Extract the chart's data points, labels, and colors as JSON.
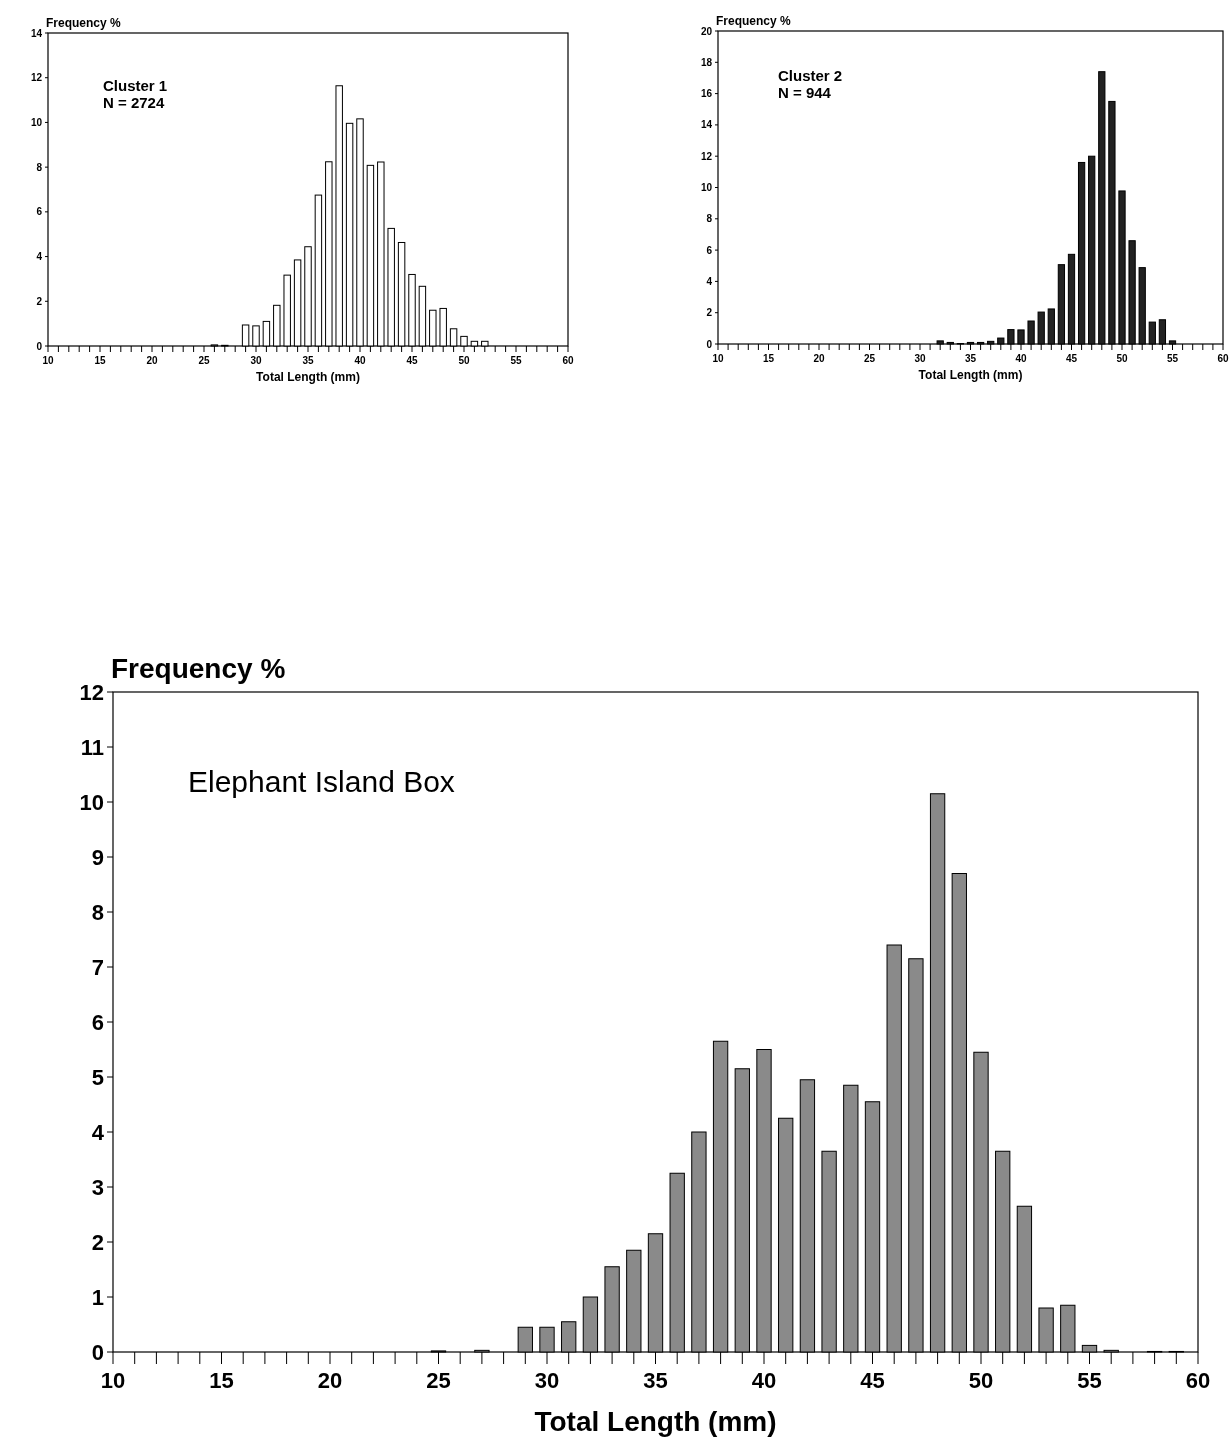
{
  "chart_data": [
    {
      "type": "bar",
      "ylabel": "Frequency %",
      "xlabel": "Total Length (mm)",
      "annotations": [
        "Cluster 1",
        "N = 2724"
      ],
      "x": [
        26,
        27,
        28,
        29,
        30,
        31,
        32,
        33,
        34,
        35,
        36,
        37,
        38,
        39,
        40,
        41,
        42,
        43,
        44,
        45,
        46,
        47,
        48,
        49,
        50,
        51,
        52
      ],
      "values": [
        0.05,
        0.03,
        0,
        0.94,
        0.9,
        1.1,
        1.82,
        3.17,
        3.85,
        4.44,
        6.75,
        8.24,
        11.64,
        9.96,
        10.16,
        8.08,
        8.23,
        5.26,
        4.63,
        3.2,
        2.67,
        1.6,
        1.68,
        0.77,
        0.43,
        0.21,
        0.21
      ],
      "color": "#ffffff",
      "xlim": [
        10,
        60
      ],
      "ylim": [
        0,
        14
      ],
      "yticks": [
        0,
        2,
        4,
        6,
        8,
        10,
        12,
        14
      ],
      "xticks": [
        10,
        {
          "value": 11,
          "label": null
        },
        {
          "value": 12,
          "label": null
        },
        {
          "value": 13,
          "label": null
        },
        {
          "value": 14,
          "label": null
        },
        15,
        {
          "value": 16,
          "label": null
        },
        {
          "value": 17,
          "label": null
        },
        {
          "value": 18,
          "label": null
        },
        {
          "value": 19,
          "label": null
        },
        20,
        {
          "value": 21,
          "label": null
        },
        {
          "value": 22,
          "label": null
        },
        {
          "value": 23,
          "label": null
        },
        {
          "value": 24,
          "label": null
        },
        25,
        {
          "value": 26,
          "label": null
        },
        {
          "value": 27,
          "label": null
        },
        {
          "value": 28,
          "label": null
        },
        {
          "value": 29,
          "label": null
        },
        30,
        {
          "value": 31,
          "label": null
        },
        {
          "value": 32,
          "label": null
        },
        {
          "value": 33,
          "label": null
        },
        {
          "value": 34,
          "label": null
        },
        35,
        {
          "value": 36,
          "label": null
        },
        {
          "value": 37,
          "label": null
        },
        {
          "value": 38,
          "label": null
        },
        {
          "value": 39,
          "label": null
        },
        40,
        {
          "value": 41,
          "label": null
        },
        {
          "value": 42,
          "label": null
        },
        {
          "value": 43,
          "label": null
        },
        {
          "value": 44,
          "label": null
        },
        45,
        {
          "value": 46,
          "label": null
        },
        {
          "value": 47,
          "label": null
        },
        {
          "value": 48,
          "label": null
        },
        {
          "value": 49,
          "label": null
        },
        50,
        {
          "value": 51,
          "label": null
        },
        {
          "value": 52,
          "label": null
        },
        {
          "value": 53,
          "label": null
        },
        {
          "value": 54,
          "label": null
        },
        55,
        {
          "value": 56,
          "label": null
        },
        {
          "value": 57,
          "label": null
        },
        {
          "value": 58,
          "label": null
        },
        {
          "value": 59,
          "label": null
        },
        60
      ]
    },
    {
      "type": "bar",
      "ylabel": "Frequency %",
      "xlabel": "Total Length (mm)",
      "annotations": [
        "Cluster 2",
        "N = 944"
      ],
      "x": [
        32,
        33,
        34,
        35,
        36,
        37,
        38,
        39,
        40,
        41,
        42,
        43,
        44,
        45,
        46,
        47,
        48,
        49,
        50,
        51,
        52,
        53,
        54,
        55
      ],
      "values": [
        0.2,
        0.1,
        0.03,
        0.1,
        0.1,
        0.17,
        0.38,
        0.92,
        0.9,
        1.47,
        2.04,
        2.24,
        5.07,
        5.73,
        11.6,
        12.0,
        17.4,
        15.5,
        9.78,
        6.6,
        4.88,
        1.4,
        1.55,
        0.2
      ],
      "color": "#222222",
      "xlim": [
        10,
        60
      ],
      "ylim": [
        0,
        20
      ],
      "yticks": [
        0,
        2,
        4,
        6,
        8,
        10,
        12,
        14,
        16,
        18,
        20
      ],
      "xticks": [
        10,
        {
          "value": 11,
          "label": null
        },
        {
          "value": 12,
          "label": null
        },
        {
          "value": 13,
          "label": null
        },
        {
          "value": 14,
          "label": null
        },
        15,
        {
          "value": 16,
          "label": null
        },
        {
          "value": 17,
          "label": null
        },
        {
          "value": 18,
          "label": null
        },
        {
          "value": 19,
          "label": null
        },
        20,
        {
          "value": 21,
          "label": null
        },
        {
          "value": 22,
          "label": null
        },
        {
          "value": 23,
          "label": null
        },
        {
          "value": 24,
          "label": null
        },
        25,
        {
          "value": 26,
          "label": null
        },
        {
          "value": 27,
          "label": null
        },
        {
          "value": 28,
          "label": null
        },
        {
          "value": 29,
          "label": null
        },
        30,
        {
          "value": 31,
          "label": null
        },
        {
          "value": 32,
          "label": null
        },
        {
          "value": 33,
          "label": null
        },
        {
          "value": 34,
          "label": null
        },
        35,
        {
          "value": 36,
          "label": null
        },
        {
          "value": 37,
          "label": null
        },
        {
          "value": 38,
          "label": null
        },
        {
          "value": 39,
          "label": null
        },
        40,
        {
          "value": 41,
          "label": null
        },
        {
          "value": 42,
          "label": null
        },
        {
          "value": 43,
          "label": null
        },
        {
          "value": 44,
          "label": null
        },
        45,
        {
          "value": 46,
          "label": null
        },
        {
          "value": 47,
          "label": null
        },
        {
          "value": 48,
          "label": null
        },
        {
          "value": 49,
          "label": null
        },
        50,
        {
          "value": 51,
          "label": null
        },
        {
          "value": 52,
          "label": null
        },
        {
          "value": 53,
          "label": null
        },
        {
          "value": 54,
          "label": null
        },
        55,
        {
          "value": 56,
          "label": null
        },
        {
          "value": 57,
          "label": null
        },
        {
          "value": 58,
          "label": null
        },
        {
          "value": 59,
          "label": null
        },
        60
      ]
    },
    {
      "type": "bar",
      "ylabel": "Frequency %",
      "xlabel": "Total Length (mm)",
      "annotations": [
        "Elephant Island Box"
      ],
      "x": [
        25,
        26,
        27,
        28,
        29,
        30,
        31,
        32,
        33,
        34,
        35,
        36,
        37,
        38,
        39,
        40,
        41,
        42,
        43,
        44,
        45,
        46,
        47,
        48,
        49,
        50,
        51,
        52,
        53,
        54,
        55,
        56,
        57,
        58,
        59
      ],
      "values": [
        0.02,
        0,
        0.03,
        0,
        0.45,
        0.45,
        0.55,
        1.0,
        1.55,
        1.85,
        2.15,
        3.25,
        4.0,
        5.65,
        5.15,
        5.5,
        4.25,
        4.95,
        3.65,
        4.85,
        4.55,
        7.4,
        7.15,
        10.15,
        8.7,
        5.45,
        3.65,
        2.65,
        0.8,
        0.85,
        0.12,
        0.03,
        0,
        0.01,
        0.01
      ],
      "color": "#8a8a8a",
      "xlim": [
        10,
        60
      ],
      "ylim": [
        0,
        12
      ],
      "yticks": [
        0,
        1,
        2,
        3,
        4,
        5,
        6,
        7,
        8,
        9,
        10,
        11,
        12
      ],
      "xticks": [
        10,
        {
          "value": 11,
          "label": null
        },
        {
          "value": 12,
          "label": null
        },
        {
          "value": 13,
          "label": null
        },
        {
          "value": 14,
          "label": null
        },
        15,
        {
          "value": 16,
          "label": null
        },
        {
          "value": 17,
          "label": null
        },
        {
          "value": 18,
          "label": null
        },
        {
          "value": 19,
          "label": null
        },
        20,
        {
          "value": 21,
          "label": null
        },
        {
          "value": 22,
          "label": null
        },
        {
          "value": 23,
          "label": null
        },
        {
          "value": 24,
          "label": null
        },
        25,
        {
          "value": 26,
          "label": null
        },
        {
          "value": 27,
          "label": null
        },
        {
          "value": 28,
          "label": null
        },
        {
          "value": 29,
          "label": null
        },
        30,
        {
          "value": 31,
          "label": null
        },
        {
          "value": 32,
          "label": null
        },
        {
          "value": 33,
          "label": null
        },
        {
          "value": 34,
          "label": null
        },
        35,
        {
          "value": 36,
          "label": null
        },
        {
          "value": 37,
          "label": null
        },
        {
          "value": 38,
          "label": null
        },
        {
          "value": 39,
          "label": null
        },
        40,
        {
          "value": 41,
          "label": null
        },
        {
          "value": 42,
          "label": null
        },
        {
          "value": 43,
          "label": null
        },
        {
          "value": 44,
          "label": null
        },
        45,
        {
          "value": 46,
          "label": null
        },
        {
          "value": 47,
          "label": null
        },
        {
          "value": 48,
          "label": null
        },
        {
          "value": 49,
          "label": null
        },
        50,
        {
          "value": 51,
          "label": null
        },
        {
          "value": 52,
          "label": null
        },
        {
          "value": 53,
          "label": null
        },
        {
          "value": 54,
          "label": null
        },
        55,
        {
          "value": 56,
          "label": null
        },
        {
          "value": 57,
          "label": null
        },
        {
          "value": 58,
          "label": null
        },
        {
          "value": 59,
          "label": null
        },
        60
      ]
    }
  ]
}
